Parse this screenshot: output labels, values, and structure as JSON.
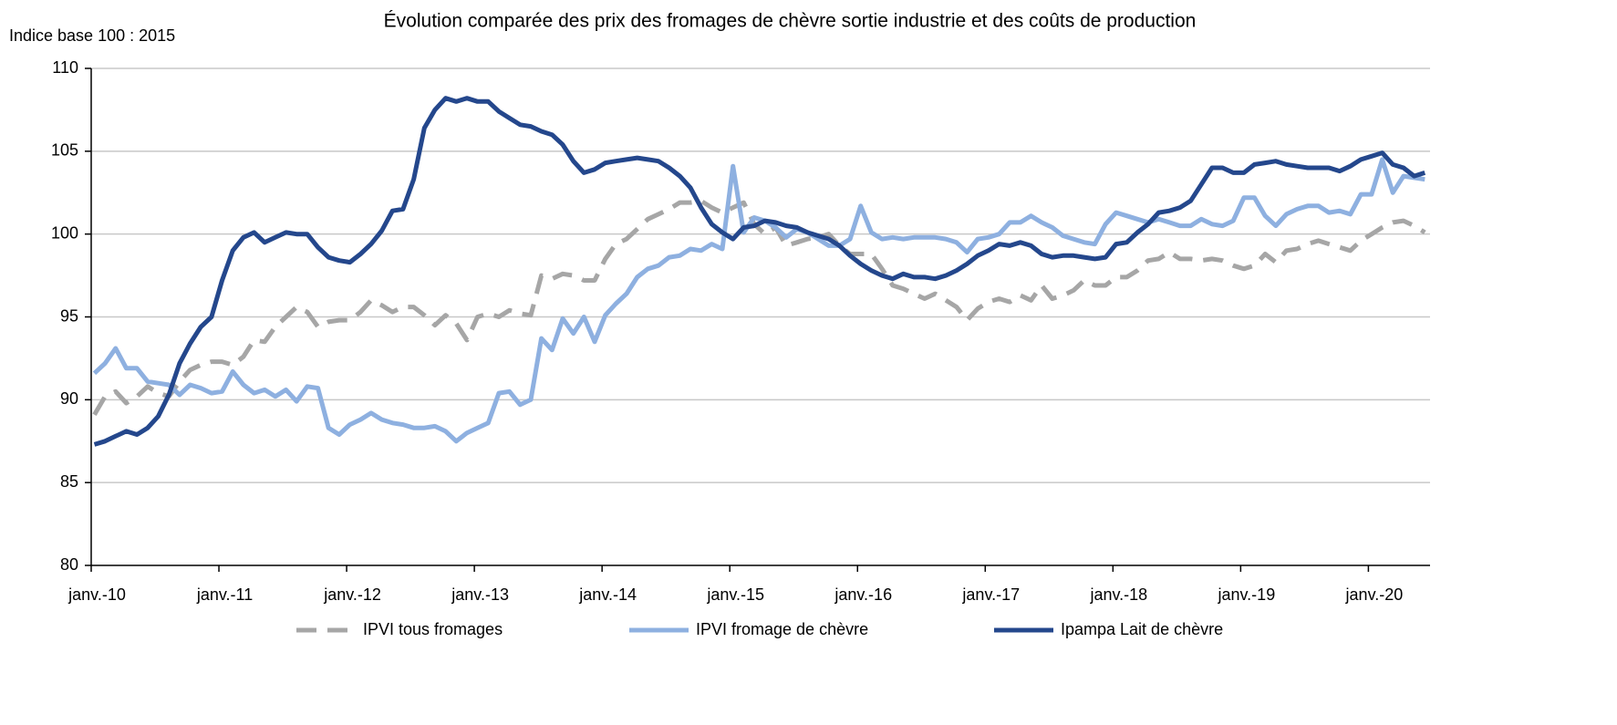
{
  "chart_data": {
    "type": "line",
    "title": "Évolution comparée des prix des fromages de chèvre sortie industrie et des coûts de production",
    "y_label": "Indice base 100 : 2015",
    "categories": [
      "janv.-10",
      null,
      null,
      null,
      null,
      null,
      null,
      null,
      null,
      null,
      null,
      null,
      "janv.-11",
      null,
      null,
      null,
      null,
      null,
      null,
      null,
      null,
      null,
      null,
      null,
      "janv.-12",
      null,
      null,
      null,
      null,
      null,
      null,
      null,
      null,
      null,
      null,
      null,
      "janv.-13",
      null,
      null,
      null,
      null,
      null,
      null,
      null,
      null,
      null,
      null,
      null,
      "janv.-14",
      null,
      null,
      null,
      null,
      null,
      null,
      null,
      null,
      null,
      null,
      null,
      "janv.-15",
      null,
      null,
      null,
      null,
      null,
      null,
      null,
      null,
      null,
      null,
      null,
      "janv.-16",
      null,
      null,
      null,
      null,
      null,
      null,
      null,
      null,
      null,
      null,
      null,
      "janv.-17",
      null,
      null,
      null,
      null,
      null,
      null,
      null,
      null,
      null,
      null,
      null,
      "janv.-18",
      null,
      null,
      null,
      null,
      null,
      null,
      null,
      null,
      null,
      null,
      null,
      "janv.-19",
      null,
      null,
      null,
      null,
      null,
      null,
      null,
      null,
      null,
      null,
      null,
      "janv.-20",
      null,
      null,
      null,
      null,
      null
    ],
    "series": [
      {
        "name": "IPVI tous fromages",
        "color": "#a6a6a6",
        "dash": true,
        "values": [
          89.1,
          90.2,
          90.5,
          89.8,
          90.2,
          90.8,
          90.4,
          90.2,
          91.1,
          91.8,
          92.1,
          92.3,
          92.3,
          92.1,
          92.6,
          93.6,
          93.5,
          94.4,
          95.0,
          95.6,
          95.3,
          94.4,
          94.7,
          94.8,
          94.8,
          95.3,
          96.0,
          95.7,
          95.3,
          95.6,
          95.6,
          95.1,
          94.5,
          95.1,
          94.6,
          93.6,
          95.0,
          95.2,
          95.0,
          95.4,
          95.2,
          95.1,
          97.5,
          97.3,
          97.6,
          97.5,
          97.2,
          97.2,
          98.5,
          99.4,
          99.7,
          100.3,
          100.9,
          101.2,
          101.5,
          101.9,
          101.9,
          102.0,
          101.6,
          101.3,
          101.6,
          101.9,
          100.6,
          100.0,
          100.4,
          99.3,
          99.5,
          99.7,
          99.8,
          100.0,
          99.3,
          98.8,
          98.8,
          98.8,
          97.9,
          96.9,
          96.7,
          96.4,
          96.1,
          96.4,
          96.0,
          95.6,
          94.8,
          95.5,
          95.9,
          96.1,
          95.9,
          96.3,
          96.0,
          96.9,
          96.1,
          96.3,
          96.6,
          97.2,
          96.9,
          96.9,
          97.4,
          97.4,
          97.8,
          98.4,
          98.5,
          98.9,
          98.5,
          98.5,
          98.4,
          98.5,
          98.4,
          98.1,
          97.9,
          98.1,
          98.8,
          98.3,
          99.0,
          99.1,
          99.4,
          99.6,
          99.4,
          99.2,
          99.0,
          99.6,
          100.0,
          100.4,
          100.7,
          100.8,
          100.5,
          100.1
        ]
      },
      {
        "name": "IPVI fromage de chèvre",
        "color": "#8eb0e0",
        "dash": false,
        "values": [
          91.6,
          92.2,
          93.1,
          91.9,
          91.9,
          91.1,
          91.0,
          90.9,
          90.3,
          90.9,
          90.7,
          90.4,
          90.5,
          91.7,
          90.9,
          90.4,
          90.6,
          90.2,
          90.6,
          89.9,
          90.8,
          90.7,
          88.3,
          87.9,
          88.5,
          88.8,
          89.2,
          88.8,
          88.6,
          88.5,
          88.3,
          88.3,
          88.4,
          88.1,
          87.5,
          88.0,
          88.3,
          88.6,
          90.4,
          90.5,
          89.7,
          90.0,
          93.7,
          93.0,
          94.9,
          94.0,
          95.0,
          93.5,
          95.1,
          95.8,
          96.4,
          97.4,
          97.9,
          98.1,
          98.6,
          98.7,
          99.1,
          99.0,
          99.4,
          99.1,
          104.1,
          100.1,
          101.0,
          100.8,
          100.4,
          99.8,
          100.3,
          100.1,
          99.7,
          99.3,
          99.3,
          99.7,
          101.7,
          100.1,
          99.7,
          99.8,
          99.7,
          99.8,
          99.8,
          99.8,
          99.7,
          99.5,
          98.9,
          99.7,
          99.8,
          100.0,
          100.7,
          100.7,
          101.1,
          100.7,
          100.4,
          99.9,
          99.7,
          99.5,
          99.4,
          100.6,
          101.3,
          101.1,
          100.9,
          100.7,
          100.9,
          100.7,
          100.5,
          100.5,
          100.9,
          100.6,
          100.5,
          100.8,
          102.2,
          102.2,
          101.1,
          100.5,
          101.2,
          101.5,
          101.7,
          101.7,
          101.3,
          101.4,
          101.2,
          102.4,
          102.4,
          104.5,
          102.5,
          103.5,
          103.4,
          103.3
        ]
      },
      {
        "name": "Ipampa Lait de chèvre",
        "color": "#24478c",
        "dash": false,
        "values": [
          87.3,
          87.5,
          87.8,
          88.1,
          87.9,
          88.3,
          89.0,
          90.3,
          92.2,
          93.4,
          94.4,
          95.0,
          97.2,
          99.0,
          99.8,
          100.1,
          99.5,
          99.8,
          100.1,
          100.0,
          100.0,
          99.2,
          98.6,
          98.4,
          98.3,
          98.8,
          99.4,
          100.2,
          101.4,
          101.5,
          103.3,
          106.4,
          107.5,
          108.2,
          108.0,
          108.2,
          108.0,
          108.0,
          107.4,
          107.0,
          106.6,
          106.5,
          106.2,
          106.0,
          105.4,
          104.4,
          103.7,
          103.9,
          104.3,
          104.4,
          104.5,
          104.6,
          104.5,
          104.4,
          104.0,
          103.5,
          102.8,
          101.6,
          100.6,
          100.1,
          99.7,
          100.4,
          100.5,
          100.8,
          100.7,
          100.5,
          100.4,
          100.1,
          99.9,
          99.7,
          99.3,
          98.7,
          98.2,
          97.8,
          97.5,
          97.3,
          97.6,
          97.4,
          97.4,
          97.3,
          97.5,
          97.8,
          98.2,
          98.7,
          99.0,
          99.4,
          99.3,
          99.5,
          99.3,
          98.8,
          98.6,
          98.7,
          98.7,
          98.6,
          98.5,
          98.6,
          99.4,
          99.5,
          100.1,
          100.6,
          101.3,
          101.4,
          101.6,
          102.0,
          103.0,
          104.0,
          104.0,
          103.7,
          103.7,
          104.2,
          104.3,
          104.4,
          104.2,
          104.1,
          104.0,
          104.0,
          104.0,
          103.8,
          104.1,
          104.5,
          104.7,
          104.9,
          104.2,
          104.0,
          103.5,
          103.7
        ]
      }
    ],
    "ylim": [
      80,
      110
    ],
    "yticks": [
      80,
      85,
      90,
      95,
      100,
      105,
      110
    ],
    "grid": true,
    "legend": "bottom"
  }
}
